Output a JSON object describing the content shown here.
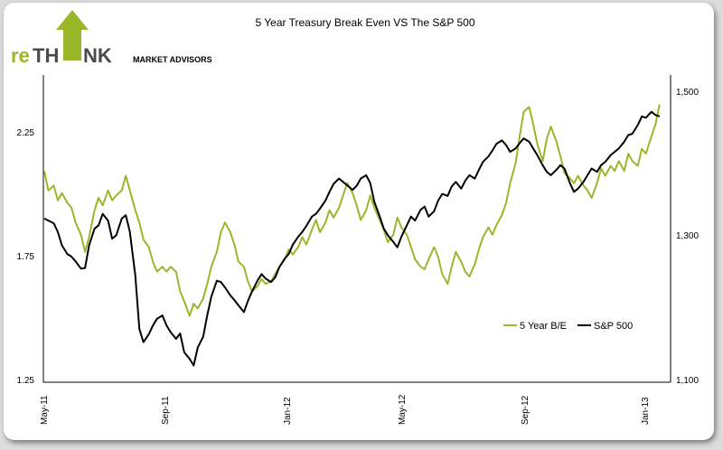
{
  "logo": {
    "prefix": "re",
    "middle": "TH",
    "suffix": "NK",
    "tagline": "MARKET ADVISORS"
  },
  "colors": {
    "green": "#9ab72a",
    "black": "#000000",
    "logo_dark": "#4a4a4a"
  },
  "chart_data": {
    "type": "line",
    "title": "5 Year Treasury Break Even VS The S&P 500",
    "xlabel": "",
    "ylabel": "",
    "y2label": "",
    "x_ticks": [
      "May-11",
      "Sep-11",
      "Jan-12",
      "May-12",
      "Sep-12",
      "Jan-13"
    ],
    "x_range": [
      "May-11",
      "Jan-13"
    ],
    "ylim_left": [
      1.25,
      2.5
    ],
    "yticks_left": [
      "2.25",
      "1.75",
      "1.25"
    ],
    "ylim_right": [
      1100,
      1560
    ],
    "yticks_right": [
      "1,500",
      "1,300",
      "1,100"
    ],
    "legend": {
      "position": "lower-right",
      "entries": [
        "5 Year B/E",
        "S&P 500"
      ]
    },
    "series": [
      {
        "name": "5 Year B/E",
        "axis": "left",
        "color": "#9ab72a",
        "points": [
          [
            0.0,
            2.11
          ],
          [
            0.03,
            2.03
          ],
          [
            0.07,
            2.05
          ],
          [
            0.1,
            1.99
          ],
          [
            0.13,
            2.02
          ],
          [
            0.17,
            1.98
          ],
          [
            0.2,
            1.96
          ],
          [
            0.23,
            1.9
          ],
          [
            0.27,
            1.85
          ],
          [
            0.3,
            1.78
          ],
          [
            0.33,
            1.84
          ],
          [
            0.37,
            1.95
          ],
          [
            0.4,
            2.0
          ],
          [
            0.43,
            1.97
          ],
          [
            0.47,
            2.03
          ],
          [
            0.5,
            1.99
          ],
          [
            0.53,
            2.01
          ],
          [
            0.57,
            2.03
          ],
          [
            0.6,
            2.09
          ],
          [
            0.63,
            2.03
          ],
          [
            0.67,
            1.95
          ],
          [
            0.7,
            1.9
          ],
          [
            0.73,
            1.83
          ],
          [
            0.77,
            1.8
          ],
          [
            0.8,
            1.74
          ],
          [
            0.83,
            1.7
          ],
          [
            0.87,
            1.72
          ],
          [
            0.9,
            1.7
          ],
          [
            0.93,
            1.72
          ],
          [
            0.97,
            1.7
          ],
          [
            1.0,
            1.62
          ],
          [
            1.03,
            1.58
          ],
          [
            1.07,
            1.52
          ],
          [
            1.1,
            1.57
          ],
          [
            1.13,
            1.55
          ],
          [
            1.17,
            1.59
          ],
          [
            1.2,
            1.65
          ],
          [
            1.23,
            1.72
          ],
          [
            1.27,
            1.78
          ],
          [
            1.3,
            1.86
          ],
          [
            1.33,
            1.9
          ],
          [
            1.37,
            1.86
          ],
          [
            1.4,
            1.81
          ],
          [
            1.43,
            1.74
          ],
          [
            1.47,
            1.72
          ],
          [
            1.5,
            1.66
          ],
          [
            1.53,
            1.62
          ],
          [
            1.57,
            1.64
          ],
          [
            1.6,
            1.67
          ],
          [
            1.63,
            1.65
          ],
          [
            1.67,
            1.66
          ],
          [
            1.7,
            1.69
          ],
          [
            1.73,
            1.72
          ],
          [
            1.77,
            1.75
          ],
          [
            1.8,
            1.79
          ],
          [
            1.83,
            1.77
          ],
          [
            1.87,
            1.8
          ],
          [
            1.9,
            1.84
          ],
          [
            1.93,
            1.81
          ],
          [
            1.97,
            1.87
          ],
          [
            2.0,
            1.91
          ],
          [
            2.03,
            1.86
          ],
          [
            2.07,
            1.9
          ],
          [
            2.1,
            1.95
          ],
          [
            2.13,
            1.92
          ],
          [
            2.17,
            1.96
          ],
          [
            2.2,
            2.01
          ],
          [
            2.23,
            2.06
          ],
          [
            2.27,
            2.02
          ],
          [
            2.3,
            1.97
          ],
          [
            2.33,
            1.91
          ],
          [
            2.37,
            1.95
          ],
          [
            2.4,
            2.01
          ],
          [
            2.43,
            1.96
          ],
          [
            2.47,
            1.91
          ],
          [
            2.5,
            1.87
          ],
          [
            2.53,
            1.82
          ],
          [
            2.57,
            1.85
          ],
          [
            2.6,
            1.92
          ],
          [
            2.63,
            1.88
          ],
          [
            2.67,
            1.85
          ],
          [
            2.7,
            1.8
          ],
          [
            2.73,
            1.75
          ],
          [
            2.77,
            1.72
          ],
          [
            2.8,
            1.71
          ],
          [
            2.83,
            1.75
          ],
          [
            2.87,
            1.8
          ],
          [
            2.9,
            1.76
          ],
          [
            2.93,
            1.69
          ],
          [
            2.97,
            1.65
          ],
          [
            3.0,
            1.72
          ],
          [
            3.03,
            1.78
          ],
          [
            3.07,
            1.74
          ],
          [
            3.1,
            1.7
          ],
          [
            3.13,
            1.68
          ],
          [
            3.17,
            1.73
          ],
          [
            3.2,
            1.79
          ],
          [
            3.23,
            1.84
          ],
          [
            3.27,
            1.88
          ],
          [
            3.3,
            1.85
          ],
          [
            3.33,
            1.89
          ],
          [
            3.37,
            1.93
          ],
          [
            3.4,
            1.98
          ],
          [
            3.43,
            2.06
          ],
          [
            3.47,
            2.14
          ],
          [
            3.5,
            2.25
          ],
          [
            3.53,
            2.35
          ],
          [
            3.57,
            2.37
          ],
          [
            3.6,
            2.3
          ],
          [
            3.63,
            2.22
          ],
          [
            3.67,
            2.15
          ],
          [
            3.7,
            2.24
          ],
          [
            3.73,
            2.29
          ],
          [
            3.77,
            2.23
          ],
          [
            3.8,
            2.17
          ],
          [
            3.83,
            2.1
          ],
          [
            3.87,
            2.08
          ],
          [
            3.9,
            2.06
          ],
          [
            3.93,
            2.09
          ],
          [
            3.97,
            2.05
          ],
          [
            4.0,
            2.03
          ],
          [
            4.03,
            2.0
          ],
          [
            4.07,
            2.06
          ],
          [
            4.1,
            2.12
          ],
          [
            4.13,
            2.09
          ],
          [
            4.17,
            2.13
          ],
          [
            4.2,
            2.11
          ],
          [
            4.23,
            2.15
          ],
          [
            4.27,
            2.11
          ],
          [
            4.3,
            2.18
          ],
          [
            4.33,
            2.15
          ],
          [
            4.37,
            2.13
          ],
          [
            4.4,
            2.2
          ],
          [
            4.43,
            2.18
          ],
          [
            4.47,
            2.25
          ],
          [
            4.5,
            2.3
          ],
          [
            4.53,
            2.38
          ]
        ]
      },
      {
        "name": "S&P 500",
        "axis": "right",
        "color": "#000000",
        "points": [
          [
            0.0,
            1345
          ],
          [
            0.03,
            1342
          ],
          [
            0.07,
            1338
          ],
          [
            0.1,
            1325
          ],
          [
            0.13,
            1305
          ],
          [
            0.17,
            1292
          ],
          [
            0.2,
            1288
          ],
          [
            0.23,
            1281
          ],
          [
            0.27,
            1270
          ],
          [
            0.3,
            1271
          ],
          [
            0.33,
            1305
          ],
          [
            0.37,
            1330
          ],
          [
            0.4,
            1335
          ],
          [
            0.43,
            1352
          ],
          [
            0.47,
            1342
          ],
          [
            0.5,
            1315
          ],
          [
            0.53,
            1320
          ],
          [
            0.57,
            1345
          ],
          [
            0.6,
            1350
          ],
          [
            0.63,
            1325
          ],
          [
            0.67,
            1260
          ],
          [
            0.7,
            1180
          ],
          [
            0.73,
            1160
          ],
          [
            0.77,
            1172
          ],
          [
            0.8,
            1185
          ],
          [
            0.83,
            1195
          ],
          [
            0.87,
            1200
          ],
          [
            0.9,
            1185
          ],
          [
            0.93,
            1175
          ],
          [
            0.97,
            1165
          ],
          [
            1.0,
            1173
          ],
          [
            1.03,
            1145
          ],
          [
            1.07,
            1135
          ],
          [
            1.1,
            1125
          ],
          [
            1.13,
            1152
          ],
          [
            1.17,
            1168
          ],
          [
            1.2,
            1200
          ],
          [
            1.23,
            1228
          ],
          [
            1.27,
            1252
          ],
          [
            1.3,
            1250
          ],
          [
            1.33,
            1242
          ],
          [
            1.37,
            1230
          ],
          [
            1.4,
            1223
          ],
          [
            1.43,
            1215
          ],
          [
            1.47,
            1205
          ],
          [
            1.5,
            1222
          ],
          [
            1.53,
            1236
          ],
          [
            1.57,
            1252
          ],
          [
            1.6,
            1262
          ],
          [
            1.63,
            1255
          ],
          [
            1.67,
            1250
          ],
          [
            1.7,
            1257
          ],
          [
            1.73,
            1272
          ],
          [
            1.77,
            1285
          ],
          [
            1.8,
            1292
          ],
          [
            1.83,
            1306
          ],
          [
            1.87,
            1318
          ],
          [
            1.9,
            1325
          ],
          [
            1.93,
            1334
          ],
          [
            1.97,
            1348
          ],
          [
            2.0,
            1352
          ],
          [
            2.03,
            1360
          ],
          [
            2.07,
            1372
          ],
          [
            2.1,
            1385
          ],
          [
            2.13,
            1397
          ],
          [
            2.17,
            1405
          ],
          [
            2.2,
            1400
          ],
          [
            2.23,
            1395
          ],
          [
            2.27,
            1388
          ],
          [
            2.3,
            1394
          ],
          [
            2.33,
            1405
          ],
          [
            2.37,
            1410
          ],
          [
            2.4,
            1398
          ],
          [
            2.43,
            1370
          ],
          [
            2.47,
            1348
          ],
          [
            2.5,
            1330
          ],
          [
            2.53,
            1320
          ],
          [
            2.57,
            1310
          ],
          [
            2.6,
            1302
          ],
          [
            2.63,
            1318
          ],
          [
            2.67,
            1335
          ],
          [
            2.7,
            1348
          ],
          [
            2.73,
            1342
          ],
          [
            2.77,
            1358
          ],
          [
            2.8,
            1363
          ],
          [
            2.83,
            1348
          ],
          [
            2.87,
            1356
          ],
          [
            2.9,
            1372
          ],
          [
            2.93,
            1382
          ],
          [
            2.97,
            1379
          ],
          [
            3.0,
            1393
          ],
          [
            3.03,
            1400
          ],
          [
            3.07,
            1390
          ],
          [
            3.1,
            1402
          ],
          [
            3.13,
            1410
          ],
          [
            3.17,
            1405
          ],
          [
            3.2,
            1418
          ],
          [
            3.23,
            1430
          ],
          [
            3.27,
            1438
          ],
          [
            3.3,
            1447
          ],
          [
            3.33,
            1457
          ],
          [
            3.37,
            1462
          ],
          [
            3.4,
            1455
          ],
          [
            3.43,
            1445
          ],
          [
            3.47,
            1450
          ],
          [
            3.5,
            1458
          ],
          [
            3.53,
            1465
          ],
          [
            3.57,
            1460
          ],
          [
            3.6,
            1450
          ],
          [
            3.63,
            1440
          ],
          [
            3.67,
            1425
          ],
          [
            3.7,
            1415
          ],
          [
            3.73,
            1410
          ],
          [
            3.77,
            1418
          ],
          [
            3.8,
            1425
          ],
          [
            3.83,
            1420
          ],
          [
            3.87,
            1398
          ],
          [
            3.9,
            1385
          ],
          [
            3.93,
            1390
          ],
          [
            3.97,
            1400
          ],
          [
            4.0,
            1410
          ],
          [
            4.03,
            1420
          ],
          [
            4.07,
            1415
          ],
          [
            4.1,
            1425
          ],
          [
            4.13,
            1430
          ],
          [
            4.17,
            1440
          ],
          [
            4.2,
            1445
          ],
          [
            4.23,
            1450
          ],
          [
            4.27,
            1460
          ],
          [
            4.3,
            1470
          ],
          [
            4.33,
            1472
          ],
          [
            4.37,
            1485
          ],
          [
            4.4,
            1498
          ],
          [
            4.43,
            1496
          ],
          [
            4.47,
            1505
          ],
          [
            4.5,
            1500
          ],
          [
            4.53,
            1498
          ]
        ]
      }
    ]
  }
}
